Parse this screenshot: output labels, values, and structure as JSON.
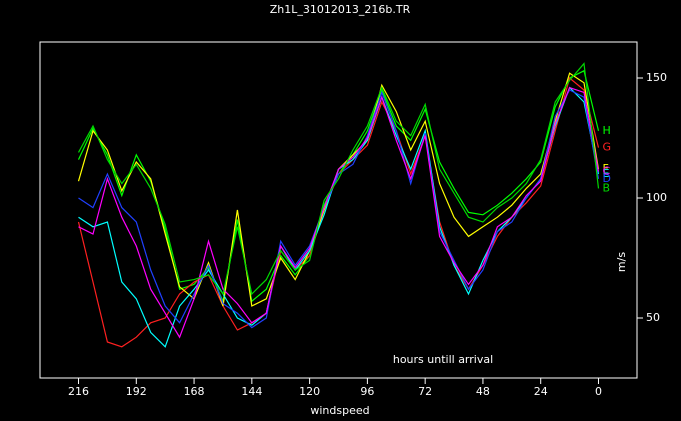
{
  "chart_data": {
    "type": "line",
    "title": "Zh1L_31012013_216b.TR",
    "x_label": "windspeed",
    "y_label": "m/s",
    "annotation": "hours untill arrival",
    "x": [
      216,
      210,
      204,
      198,
      192,
      186,
      180,
      174,
      168,
      162,
      156,
      150,
      144,
      138,
      132,
      126,
      120,
      114,
      108,
      102,
      96,
      90,
      84,
      78,
      72,
      66,
      60,
      54,
      48,
      42,
      36,
      30,
      24,
      18,
      12,
      6,
      0
    ],
    "xlim": [
      232,
      -16
    ],
    "xticks": [
      216,
      192,
      168,
      144,
      120,
      96,
      72,
      48,
      24,
      0
    ],
    "ylim": [
      25,
      165
    ],
    "yticks": [
      50,
      100,
      150
    ],
    "series": [
      {
        "name": "H",
        "color": "#00ff00",
        "values": [
          116,
          129,
          118,
          101,
          118,
          107,
          87,
          62,
          64,
          71,
          57,
          91,
          57,
          62,
          76,
          68,
          76,
          97,
          110,
          118,
          128,
          145,
          130,
          124,
          137,
          115,
          104,
          94,
          93,
          97,
          102,
          108,
          115,
          138,
          150,
          153,
          128
        ]
      },
      {
        "name": "G",
        "color": "#ff2020",
        "values": [
          90,
          65,
          40,
          38,
          42,
          48,
          50,
          60,
          65,
          68,
          55,
          45,
          48,
          52,
          78,
          70,
          76,
          95,
          110,
          116,
          122,
          140,
          128,
          110,
          126,
          90,
          72,
          62,
          72,
          84,
          92,
          98,
          105,
          128,
          150,
          145,
          121
        ]
      },
      {
        "name": "F",
        "color": "#ffff00",
        "values": [
          107,
          128,
          120,
          103,
          115,
          108,
          85,
          63,
          58,
          73,
          55,
          95,
          55,
          58,
          75,
          66,
          78,
          95,
          112,
          118,
          124,
          147,
          136,
          120,
          132,
          106,
          92,
          84,
          88,
          92,
          97,
          104,
          110,
          132,
          152,
          148,
          112
        ]
      },
      {
        "name": "E",
        "color": "#00ffff",
        "values": [
          92,
          88,
          90,
          65,
          58,
          44,
          38,
          55,
          62,
          70,
          60,
          50,
          47,
          52,
          80,
          70,
          78,
          93,
          112,
          116,
          124,
          142,
          126,
          112,
          128,
          88,
          72,
          60,
          74,
          86,
          92,
          100,
          108,
          130,
          146,
          140,
          110
        ]
      },
      {
        "name": "D",
        "color": "#2040ff",
        "values": [
          100,
          96,
          110,
          96,
          90,
          70,
          55,
          48,
          60,
          72,
          56,
          52,
          46,
          50,
          82,
          72,
          80,
          96,
          110,
          114,
          126,
          144,
          128,
          106,
          127,
          86,
          74,
          62,
          70,
          86,
          90,
          100,
          108,
          134,
          145,
          142,
          108
        ]
      },
      {
        "name": "C",
        "color": "#ff00ff",
        "values": [
          88,
          85,
          108,
          92,
          80,
          62,
          52,
          42,
          58,
          82,
          62,
          56,
          48,
          52,
          80,
          71,
          79,
          96,
          112,
          117,
          125,
          142,
          124,
          108,
          126,
          84,
          73,
          64,
          72,
          88,
          92,
          101,
          107,
          131,
          146,
          144,
          111
        ]
      },
      {
        "name": "B",
        "color": "#00d800",
        "values": [
          119,
          130,
          116,
          106,
          114,
          104,
          89,
          65,
          66,
          68,
          60,
          88,
          60,
          66,
          78,
          70,
          74,
          99,
          108,
          120,
          130,
          146,
          132,
          126,
          139,
          112,
          102,
          92,
          90,
          96,
          100,
          106,
          116,
          140,
          149,
          156,
          104
        ]
      }
    ]
  }
}
